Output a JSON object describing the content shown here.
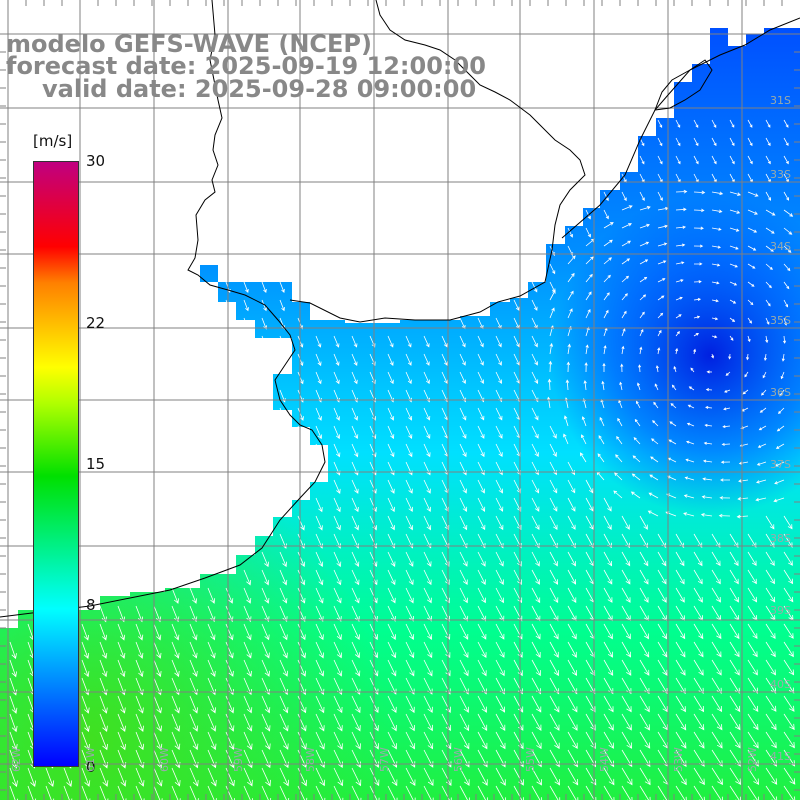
{
  "title": {
    "line1": "modelo GEFS-WAVE (NCEP)",
    "line2": "forecast date: 2025-09-19 12:00:00",
    "line3": "valid date: 2025-09-28 09:00:00"
  },
  "colorbar": {
    "units": "[m/s]",
    "ticks": [
      {
        "label": "30",
        "value": 30
      },
      {
        "label": "22",
        "value": 22
      },
      {
        "label": "15",
        "value": 15
      },
      {
        "label": "8",
        "value": 8
      },
      {
        "label": "0",
        "value": 0
      }
    ],
    "colors": [
      "#0000ff",
      "#0080ff",
      "#00ffff",
      "#00e000",
      "#b0ff00",
      "#ffff00",
      "#ff8000",
      "#ff0000",
      "#c00080"
    ]
  },
  "map": {
    "variable": "wind speed and direction",
    "lat_labels": [
      "31S",
      "33S",
      "34S",
      "35S",
      "36S",
      "37S",
      "38S",
      "39S",
      "40S",
      "41S"
    ],
    "lon_labels": [
      "62W",
      "61W",
      "60W",
      "59W",
      "58W",
      "57W",
      "56W",
      "55W",
      "54W",
      "53W",
      "52W"
    ],
    "land_color": "#ffffff",
    "grid_color": "#808080"
  }
}
